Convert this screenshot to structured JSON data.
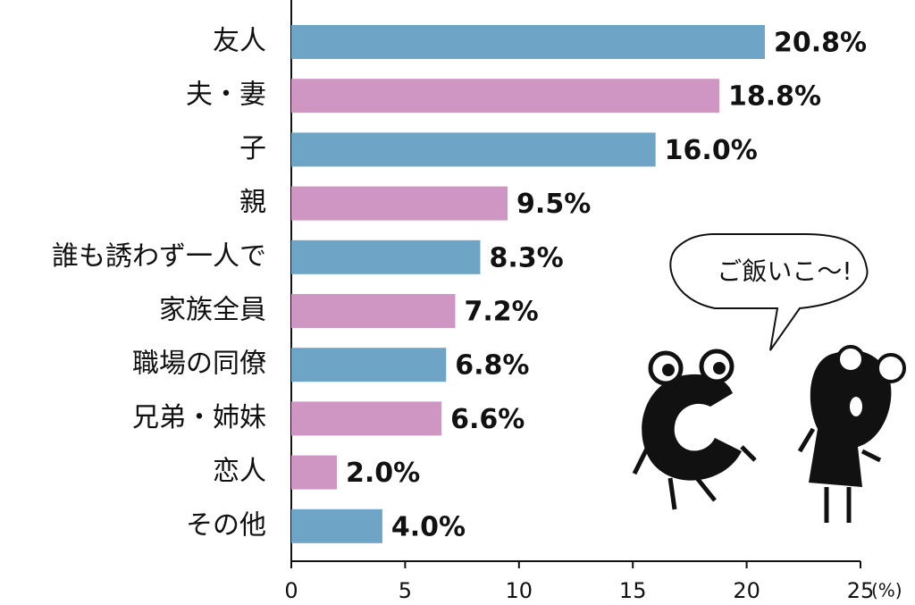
{
  "chart_data": {
    "type": "hbar",
    "categories": [
      "友人",
      "夫・妻",
      "子",
      "親",
      "誰も誘わず一人で",
      "家族全員",
      "職場の同僚",
      "兄弟・姉妹",
      "恋人",
      "その他"
    ],
    "values": [
      20.8,
      18.8,
      16.0,
      9.5,
      8.3,
      7.2,
      6.8,
      6.6,
      2.0,
      4.0
    ],
    "value_labels": [
      "20.8%",
      "18.8%",
      "16.0%",
      "9.5%",
      "8.3%",
      "7.2%",
      "6.8%",
      "6.6%",
      "2.0%",
      "4.0%"
    ],
    "colors": [
      "#6ea5c7",
      "#cf95c3",
      "#6ea5c7",
      "#cf95c3",
      "#6ea5c7",
      "#cf95c3",
      "#6ea5c7",
      "#cf95c3",
      "#cf95c3",
      "#6ea5c7"
    ],
    "xlim": [
      0,
      25
    ],
    "xticks": [
      0,
      5,
      10,
      15,
      20,
      25
    ],
    "x_unit": "(%)",
    "annotation": "ご飯いこ〜!"
  }
}
